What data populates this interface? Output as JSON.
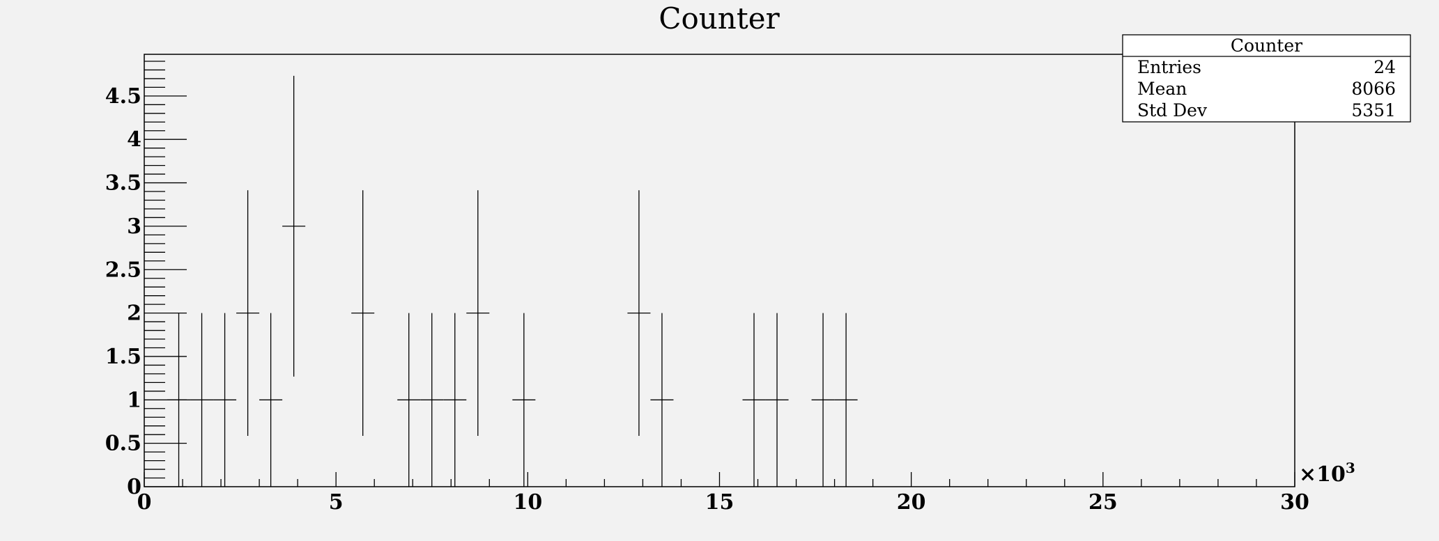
{
  "chart_data": {
    "type": "histogram",
    "title": "Counter",
    "xlabel": "",
    "ylabel": "",
    "x_multiplier_label": "×10",
    "x_multiplier_exponent": "3",
    "xlim": [
      0,
      30
    ],
    "ylim": [
      0,
      4.98
    ],
    "x_ticks": [
      0,
      5,
      10,
      15,
      20,
      25,
      30
    ],
    "y_ticks": [
      0,
      0.5,
      1,
      1.5,
      2,
      2.5,
      3,
      3.5,
      4,
      4.5
    ],
    "bin_width": 0.6,
    "bins": [
      {
        "x": 0.9,
        "y": 1
      },
      {
        "x": 1.5,
        "y": 1
      },
      {
        "x": 2.1,
        "y": 1
      },
      {
        "x": 2.7,
        "y": 2
      },
      {
        "x": 3.3,
        "y": 1
      },
      {
        "x": 3.9,
        "y": 3
      },
      {
        "x": 5.7,
        "y": 2
      },
      {
        "x": 6.9,
        "y": 1
      },
      {
        "x": 7.5,
        "y": 1
      },
      {
        "x": 8.1,
        "y": 1
      },
      {
        "x": 8.7,
        "y": 2
      },
      {
        "x": 9.9,
        "y": 1
      },
      {
        "x": 12.9,
        "y": 2
      },
      {
        "x": 13.5,
        "y": 1
      },
      {
        "x": 15.9,
        "y": 1
      },
      {
        "x": 16.5,
        "y": 1
      },
      {
        "x": 17.7,
        "y": 1
      },
      {
        "x": 18.3,
        "y": 1
      }
    ],
    "grid": false,
    "stats_box": {
      "title": "Counter",
      "rows": [
        {
          "label": "Entries",
          "value": "24"
        },
        {
          "label": "Mean",
          "value": "8066"
        },
        {
          "label": "Std Dev",
          "value": "5351"
        }
      ]
    }
  }
}
